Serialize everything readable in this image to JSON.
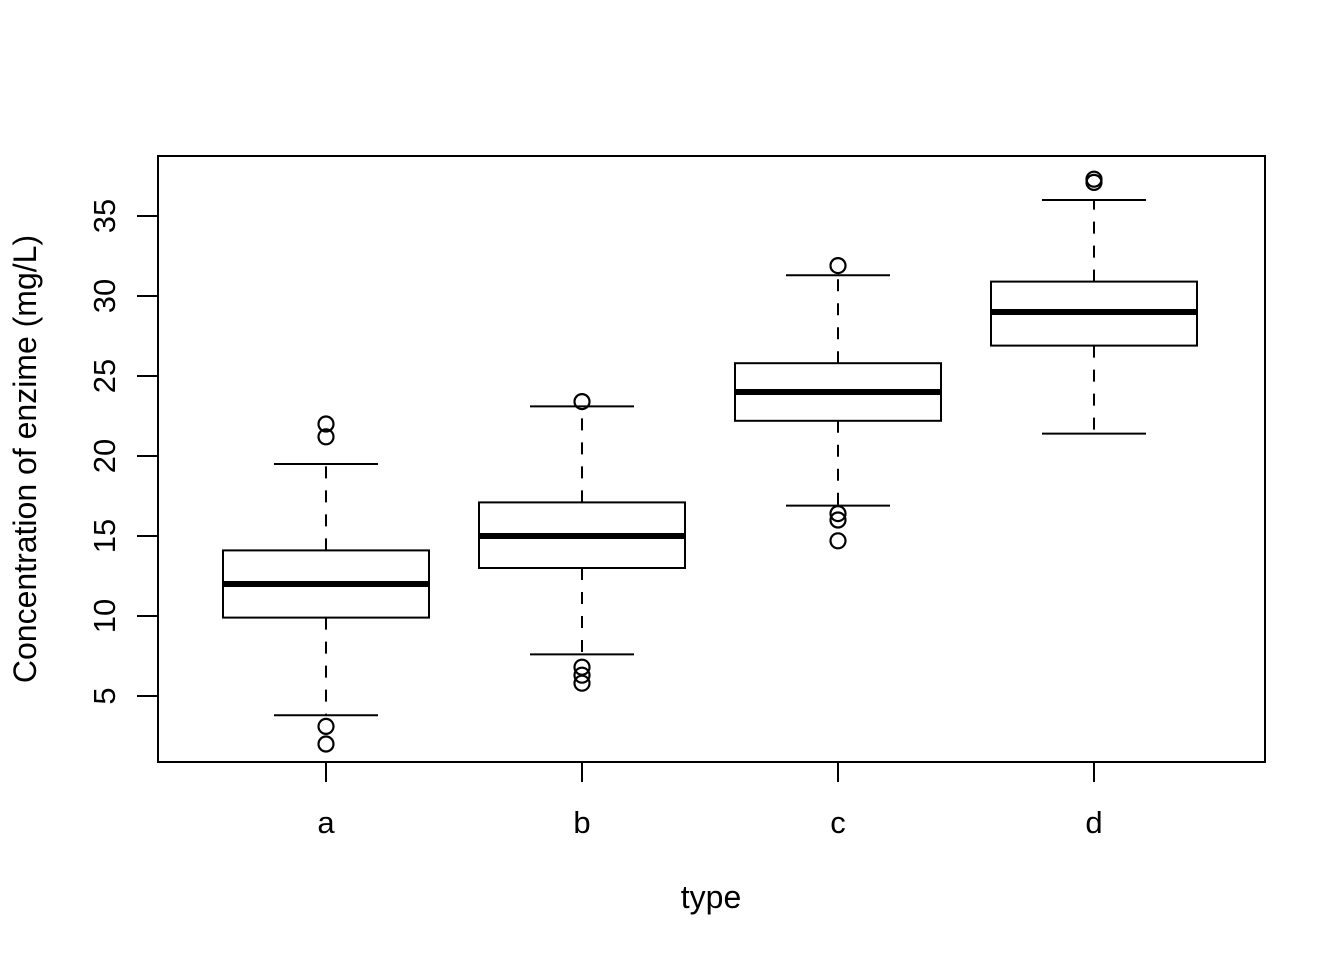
{
  "chart_data": {
    "type": "boxplot",
    "title": "",
    "xlabel": "type",
    "ylabel": "Concentration of enzime (mg/L)",
    "categories": [
      "a",
      "b",
      "c",
      "d"
    ],
    "y_ticks": [
      5,
      10,
      15,
      20,
      25,
      30,
      35
    ],
    "ylim": [
      0.9,
      38.8
    ],
    "grid": false,
    "legend": "none",
    "colors": {
      "stroke": "#000000",
      "background": "#ffffff"
    },
    "series": [
      {
        "category": "a",
        "whisker_low": 3.8,
        "q1": 9.9,
        "median": 12.0,
        "q3": 14.1,
        "whisker_high": 19.5,
        "outliers": [
          22.0,
          21.2,
          3.1,
          2.0
        ]
      },
      {
        "category": "b",
        "whisker_low": 7.6,
        "q1": 13.0,
        "median": 15.0,
        "q3": 17.1,
        "whisker_high": 23.1,
        "outliers": [
          23.4,
          6.8,
          6.3,
          5.8
        ]
      },
      {
        "category": "c",
        "whisker_low": 16.9,
        "q1": 22.2,
        "median": 24.0,
        "q3": 25.8,
        "whisker_high": 31.3,
        "outliers": [
          31.9,
          16.4,
          16.0,
          14.7
        ]
      },
      {
        "category": "d",
        "whisker_low": 21.4,
        "q1": 26.9,
        "median": 29.0,
        "q3": 30.9,
        "whisker_high": 36.0,
        "outliers": [
          37.3,
          37.1
        ]
      }
    ]
  }
}
